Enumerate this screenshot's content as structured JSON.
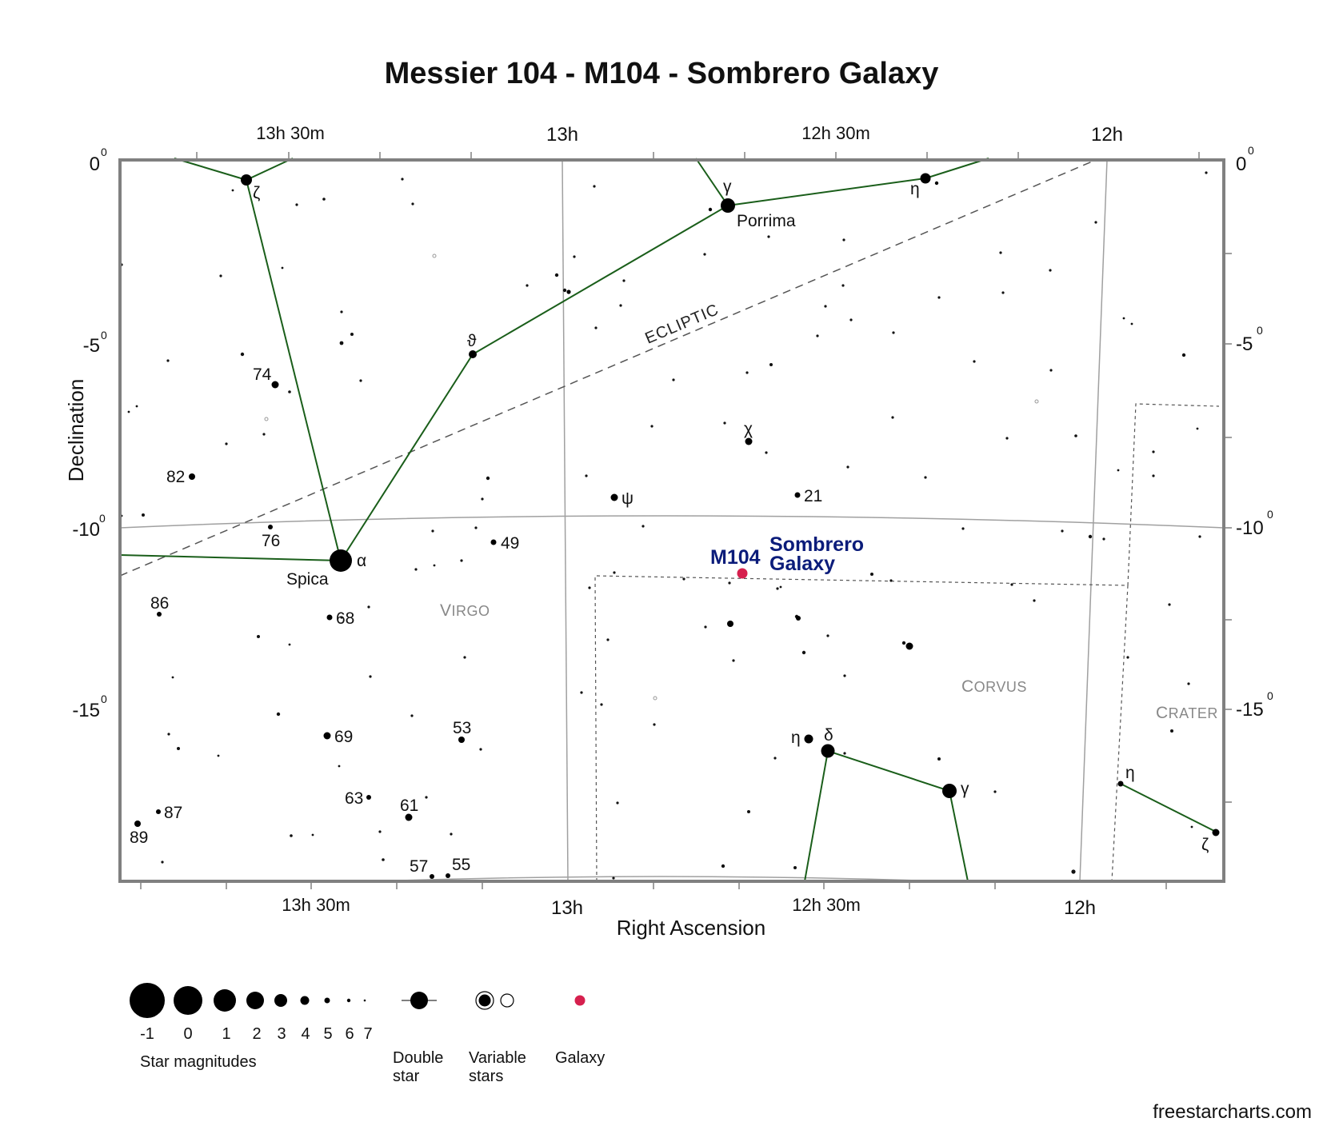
{
  "title": "Messier 104 - M104 - Sombrero Galaxy",
  "axes": {
    "x_title": "Right Ascension",
    "y_title": "Declination",
    "ra_top": [
      "13h 30m",
      "13h",
      "12h 30m",
      "12h"
    ],
    "ra_bottom": [
      "13h 30m",
      "13h",
      "12h 30m",
      "12h"
    ],
    "dec": [
      "0",
      "-5",
      "-10",
      "-15"
    ],
    "dec_sup": "0"
  },
  "ecliptic_label": "ECLIPTIC",
  "constellations": {
    "virgo": "Virgo",
    "corvus": "Corvus",
    "crater": "Crater"
  },
  "stars": {
    "zeta_vir": "ζ",
    "gamma_vir": "γ",
    "porrima": "Porrima",
    "eta_vir": "η",
    "theta_vir": "ϑ",
    "n74": "74",
    "n82": "82",
    "n76": "76",
    "alpha_vir": "α",
    "spica": "Spica",
    "n49": "49",
    "n86": "86",
    "n68": "68",
    "chi_vir": "χ",
    "psi_vir": "ψ",
    "n21": "21",
    "n69": "69",
    "n53": "53",
    "n63": "63",
    "n61": "61",
    "n87": "87",
    "n89": "89",
    "n57": "57",
    "n55": "55",
    "eta_crv": "η",
    "delta_crv": "δ",
    "gamma_crv": "γ",
    "eta_crt": "η",
    "zeta_crt": "ζ"
  },
  "target": {
    "id": "M104",
    "name_line1": "Sombrero",
    "name_line2": "Galaxy",
    "color": "#d6204e"
  },
  "legend": {
    "magnitudes": [
      "-1",
      "0",
      "1",
      "2",
      "3",
      "4",
      "5",
      "6",
      "7"
    ],
    "magnitudes_label": "Star magnitudes",
    "double_star": [
      "Double",
      "star"
    ],
    "variable_stars": [
      "Variable",
      "stars"
    ],
    "galaxy": "Galaxy"
  },
  "credit": "freestarcharts.com",
  "colors": {
    "constellation_lines": "#1a5e1a",
    "frame": "#808080",
    "grid": "#a0a0a0",
    "galaxy": "#d6204e",
    "label_blue": "#0b1c7a"
  }
}
